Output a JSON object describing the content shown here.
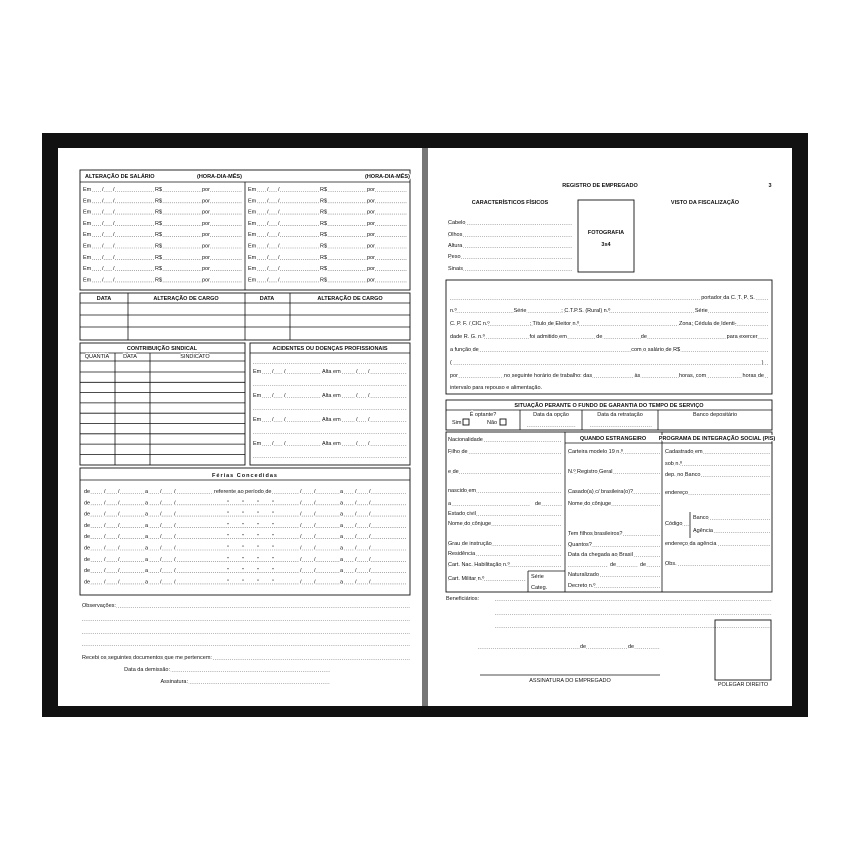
{
  "left_page": {
    "salary": {
      "title": "ALTERAÇÃO DE SALÁRIO",
      "unit": "(HORA-DIA-MÊS)",
      "em": "Em",
      "sep": "/",
      "rs": "R$",
      "por": "por"
    },
    "cargo": {
      "headers": [
        "DATA",
        "ALTERAÇÃO DE CARGO",
        "DATA",
        "ALTERAÇÃO DE CARGO"
      ]
    },
    "sindical": {
      "title": "CONTRIBUIÇÃO SINDICAL",
      "headers": [
        "QUANTIA",
        "DATA",
        "SINDICATO"
      ]
    },
    "acidentes": {
      "title": "ACIDENTES OU DOENÇAS PROFISSIONAIS",
      "em": "Em",
      "alta": "Alta em"
    },
    "ferias": {
      "title": "Férias Concedidas",
      "de": "de",
      "a": "a",
      "ref": "referente ao período de",
      "ditto": "\""
    },
    "obs": "Observações:",
    "recebi": "Recebi os seguintes documentos que me pertencem:",
    "demissao": "Data da demissão:",
    "assinatura": "Assinatura:"
  },
  "right_page": {
    "title": "REGISTRO DE EMPREGADO",
    "page_number": "3",
    "caracteristicos": "CARACTERÍSTICOS FÍSICOS",
    "visto": "VISTO DA FISCALIZAÇÃO",
    "fisicos": [
      "Cabelo",
      "Olhos",
      "Altura",
      "Peso",
      "Sinais"
    ],
    "foto": [
      "FOTOGRAFIA",
      "3x4"
    ],
    "paragraph": [
      [
        "portador da C. T. P. S."
      ],
      [
        "n.º",
        "Série",
        "; C.T.P.S. (Rural) n.º",
        "Série"
      ],
      [
        "C. P. F. / CIC n.º",
        "; Título de Eleitor n.º",
        "Zona; Cédula de Identi-"
      ],
      [
        "dade R. G. n.º",
        "foi admitido em",
        "de",
        "de",
        "para exercer"
      ],
      [
        "a função de",
        "com o salário de R$"
      ],
      [
        "(",
        ")"
      ],
      [
        "por",
        "no seguinte horário de trabalho: das",
        "às",
        "horas, com",
        "horas de"
      ],
      [
        "intervalo para repouso e alimentação."
      ]
    ],
    "fgts": {
      "title": "SITUAÇÃO PERANTE O FUNDO DE GARANTIA DO TEMPO DE SERVIÇO",
      "headers": [
        "É optante?",
        "Data da opção",
        "Data da retratação",
        "Banco depositário"
      ],
      "sim": "Sim",
      "nao": "Não"
    },
    "dados": {
      "left": [
        "Nacionalidade",
        "Filho de",
        "e de",
        "nascido em",
        "a",
        "de",
        "Estado civil",
        "Nome do cônjuge",
        "Grau de instrução",
        "Residência",
        "Cart. Nac. Habilitação n.º",
        "Cart. Militar n.º"
      ],
      "estrangeiro_title": "QUANDO ESTRANGEIRO",
      "estrangeiro": [
        "Carteira modelo 19 n.º",
        "N.º Registro Geral",
        "Casado(a) c/ brasileira(o)?",
        "Nome do cônjuge",
        "Tem filhos brasileiros?",
        "Quantos?",
        "Data da chegada ao Brasil",
        "de",
        "de",
        "Naturalizado",
        "Decreto n.º"
      ],
      "pis_title": "PROGRAMA DE INTEGRAÇÃO SOCIAL (PIS)",
      "pis": [
        "Cadastrado em",
        "sob n.º",
        "dep. no Banco",
        "endereço",
        "Código",
        "Banco",
        "Agência",
        "endereço da agência",
        "Obs."
      ],
      "serie": "Série",
      "categ": "Categ."
    },
    "beneficiarios": "Beneficiários:",
    "local_data": [
      "de",
      "de"
    ],
    "assinatura": "ASSINATURA DO EMPREGADO",
    "polegar": "POLEGAR DIREITO"
  }
}
